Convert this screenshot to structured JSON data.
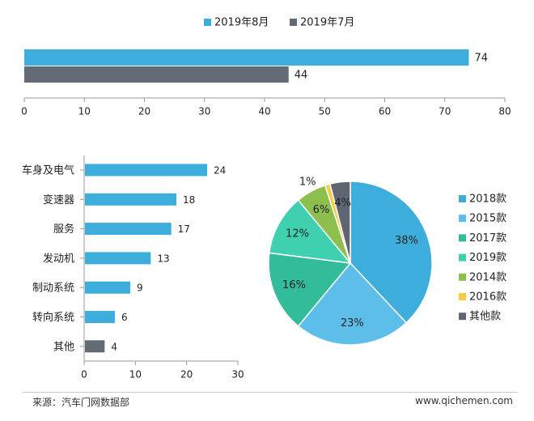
{
  "chart_data": [
    {
      "type": "bar",
      "orientation": "horizontal",
      "series": [
        {
          "name": "2019年8月",
          "values": [
            74
          ],
          "color": "#3DAEDB"
        },
        {
          "name": "2019年7月",
          "values": [
            44
          ],
          "color": "#636B75"
        }
      ],
      "xlim": [
        0,
        80
      ],
      "xticks": [
        "0",
        "10",
        "20",
        "30",
        "40",
        "50",
        "60",
        "70",
        "80"
      ],
      "legend": "top-center"
    },
    {
      "type": "bar",
      "orientation": "horizontal",
      "categories": [
        "车身及电气",
        "变速器",
        "服务",
        "发动机",
        "制动系统",
        "转向系统",
        "其他"
      ],
      "values": [
        24,
        18,
        17,
        13,
        9,
        6,
        4
      ],
      "colors": [
        "#3DAEDB",
        "#3DAEDB",
        "#3DAEDB",
        "#3DAEDB",
        "#3DAEDB",
        "#3DAEDB",
        "#636B75"
      ],
      "xlim": [
        0,
        30
      ],
      "xticks": [
        "0",
        "10",
        "20",
        "30"
      ]
    },
    {
      "type": "pie",
      "labels": [
        "2018款",
        "2015款",
        "2017款",
        "2019款",
        "2014款",
        "2016款",
        "其他款"
      ],
      "values": [
        38,
        23,
        16,
        12,
        6,
        1,
        4
      ],
      "value_labels": [
        "38%",
        "23%",
        "16%",
        "12%",
        "6%",
        "1%",
        "4%"
      ],
      "colors": [
        "#3DAEDB",
        "#5DBFE9",
        "#33BC99",
        "#3FD0B0",
        "#8CBF4E",
        "#F5CD46",
        "#5F6672"
      ],
      "legend": "right"
    }
  ],
  "footer": {
    "source": "来源：汽车门网数据部",
    "website": "www.qichemen.com"
  }
}
